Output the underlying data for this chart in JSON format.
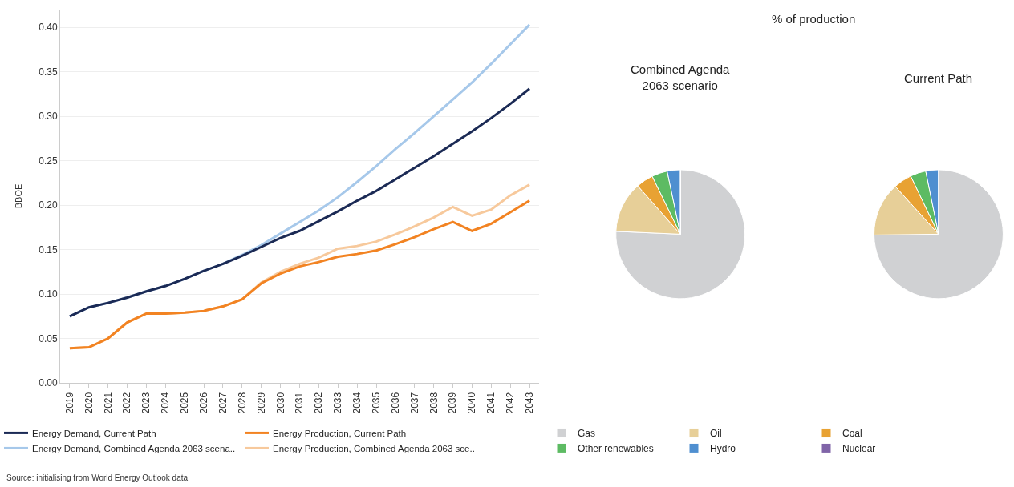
{
  "chart_data": [
    {
      "type": "line",
      "ylabel": "BBOE",
      "x": [
        2019,
        2020,
        2021,
        2022,
        2023,
        2024,
        2025,
        2026,
        2027,
        2028,
        2029,
        2030,
        2031,
        2032,
        2033,
        2034,
        2035,
        2036,
        2037,
        2038,
        2039,
        2040,
        2041,
        2042,
        2043
      ],
      "series": [
        {
          "name": "Energy Demand, Current Path",
          "color": "#1b2a55",
          "values": [
            0.075,
            0.085,
            0.09,
            0.096,
            0.103,
            0.109,
            0.117,
            0.126,
            0.134,
            0.143,
            0.153,
            0.163,
            0.171,
            0.182,
            0.193,
            0.205,
            0.216,
            0.229,
            0.242,
            0.255,
            0.269,
            0.283,
            0.298,
            0.314,
            0.331
          ]
        },
        {
          "name": "Energy Production, Current Path",
          "color": "#f28322",
          "values": [
            0.039,
            0.04,
            0.05,
            0.068,
            0.078,
            0.078,
            0.079,
            0.081,
            0.086,
            0.094,
            0.112,
            0.123,
            0.131,
            0.136,
            0.142,
            0.145,
            0.149,
            0.156,
            0.164,
            0.173,
            0.181,
            0.171,
            0.179,
            0.192,
            0.205
          ]
        },
        {
          "name": "Energy Demand, Combined Agenda 2063 scena..",
          "color": "#a6c8ea",
          "values": [
            0.075,
            0.085,
            0.09,
            0.096,
            0.103,
            0.109,
            0.117,
            0.126,
            0.134,
            0.144,
            0.155,
            0.168,
            0.181,
            0.194,
            0.209,
            0.226,
            0.244,
            0.263,
            0.281,
            0.3,
            0.319,
            0.338,
            0.359,
            0.381,
            0.403
          ]
        },
        {
          "name": "Energy Production, Combined Agenda 2063 sce..",
          "color": "#f7c99c",
          "values": [
            0.039,
            0.04,
            0.05,
            0.068,
            0.078,
            0.078,
            0.079,
            0.081,
            0.086,
            0.094,
            0.113,
            0.125,
            0.134,
            0.141,
            0.151,
            0.154,
            0.159,
            0.167,
            0.176,
            0.186,
            0.198,
            0.188,
            0.195,
            0.211,
            0.223
          ]
        }
      ],
      "xlim": [
        2018.5,
        2043.5
      ],
      "xticks": [
        2019,
        2020,
        2021,
        2022,
        2023,
        2024,
        2025,
        2026,
        2027,
        2028,
        2029,
        2030,
        2031,
        2032,
        2033,
        2034,
        2035,
        2036,
        2037,
        2038,
        2039,
        2040,
        2041,
        2042,
        2043
      ],
      "ylim": [
        0,
        0.42
      ],
      "yticks": [
        {
          "value": 0,
          "label": "0.00"
        },
        {
          "value": 0.05,
          "label": "0.05"
        },
        {
          "value": 0.1,
          "label": "0.10"
        },
        {
          "value": 0.15,
          "label": "0.15"
        },
        {
          "value": 0.2,
          "label": "0.20"
        },
        {
          "value": 0.25,
          "label": "0.25"
        },
        {
          "value": 0.3,
          "label": "0.30"
        },
        {
          "value": 0.35,
          "label": "0.35"
        },
        {
          "value": 0.4,
          "label": "0.40"
        }
      ],
      "grid": "y",
      "legend": "bottom",
      "annotations": [
        "Source: initialising from World Energy Outlook data"
      ]
    },
    {
      "type": "pie",
      "title": "% of production",
      "categories": [
        "Gas",
        "Oil",
        "Coal",
        "Other renewables",
        "Hydro",
        "Nuclear"
      ],
      "colors": [
        "#d0d1d3",
        "#e7cf98",
        "#e8a233",
        "#5dbb63",
        "#4f8fd0",
        "#8064a8"
      ],
      "series": [
        {
          "name": "Combined Agenda 2063 scenario",
          "values": [
            75.7,
            12.8,
            4.3,
            3.9,
            3.3,
            0
          ]
        },
        {
          "name": "Current Path",
          "values": [
            74.8,
            13.5,
            4.6,
            3.9,
            3.2,
            0
          ]
        }
      ],
      "legend": "bottom"
    }
  ]
}
